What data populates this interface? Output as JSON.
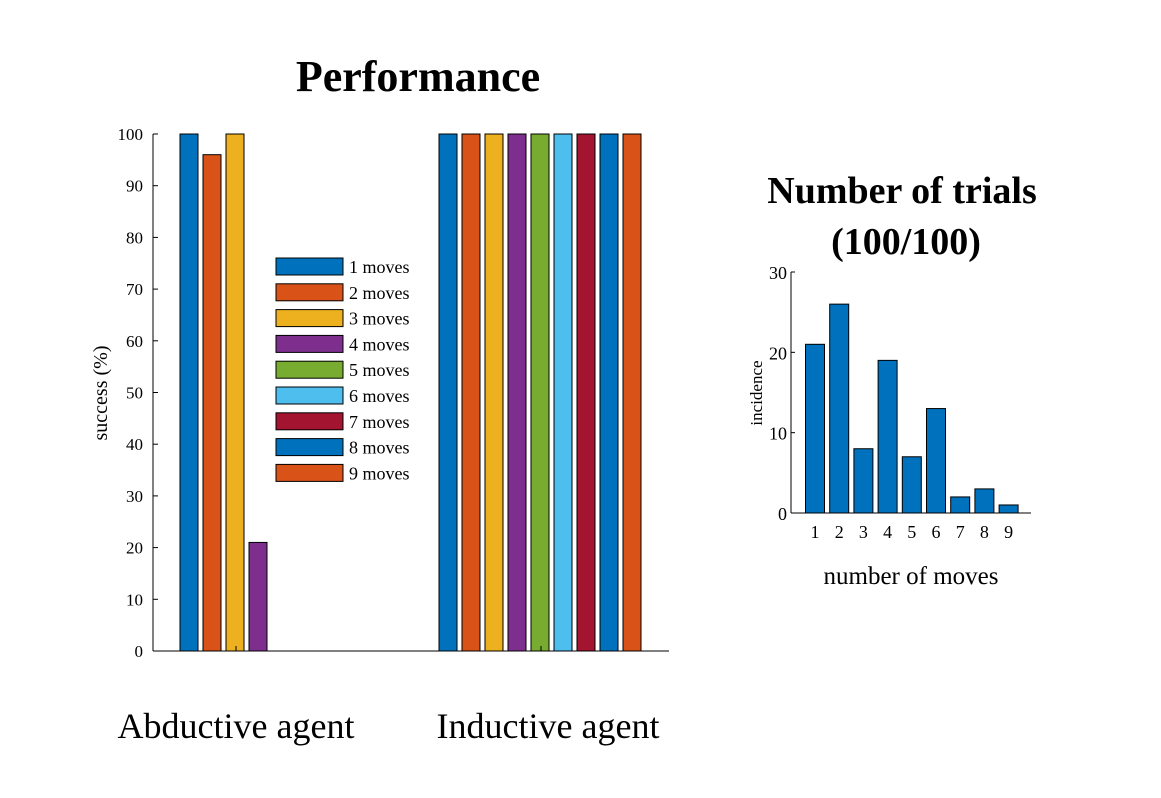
{
  "chart_data": [
    {
      "type": "bar",
      "title": "Performance",
      "ylabel": "success (%)",
      "xlabel": "",
      "ylim": [
        0,
        100
      ],
      "yticks": [
        "0",
        "10",
        "20",
        "30",
        "40",
        "50",
        "60",
        "70",
        "80",
        "90",
        "100"
      ],
      "categories": [
        "Abductive agent",
        "Inductive agent"
      ],
      "series": [
        {
          "name": "1 moves",
          "color": "#0072BD",
          "values": [
            100,
            100
          ]
        },
        {
          "name": "2 moves",
          "color": "#D95319",
          "values": [
            96,
            100
          ]
        },
        {
          "name": "3 moves",
          "color": "#EDB120",
          "values": [
            100,
            100
          ]
        },
        {
          "name": "4 moves",
          "color": "#7E2F8E",
          "values": [
            21,
            100
          ]
        },
        {
          "name": "5 moves",
          "color": "#77AC30",
          "values": [
            0,
            100
          ]
        },
        {
          "name": "6 moves",
          "color": "#4DBEEE",
          "values": [
            0,
            100
          ]
        },
        {
          "name": "7 moves",
          "color": "#A2142F",
          "values": [
            0,
            100
          ]
        },
        {
          "name": "8 moves",
          "color": "#0072BD",
          "values": [
            0,
            100
          ]
        },
        {
          "name": "9 moves",
          "color": "#D95319",
          "values": [
            0,
            100
          ]
        }
      ],
      "legend_position": "center"
    },
    {
      "type": "bar",
      "title": "Number of trials",
      "subtitle": "(100/100)",
      "xlabel": "number of moves",
      "ylabel": "incidence",
      "ylim": [
        0,
        30
      ],
      "yticks": [
        "0",
        "10",
        "20",
        "30"
      ],
      "categories": [
        "1",
        "2",
        "3",
        "4",
        "5",
        "6",
        "7",
        "8",
        "9"
      ],
      "values": [
        21,
        26,
        8,
        19,
        7,
        13,
        2,
        3,
        1
      ],
      "color": "#0072BD"
    }
  ]
}
